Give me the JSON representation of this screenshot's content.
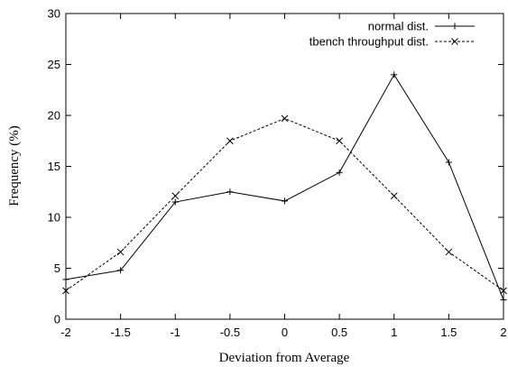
{
  "chart_data": {
    "type": "line",
    "xlabel": "Deviation from Average",
    "ylabel": "Frequency (%)",
    "xlim": [
      -2,
      2
    ],
    "ylim": [
      0,
      30
    ],
    "xticks": [
      "-2",
      "-1.5",
      "-1",
      "-0.5",
      "0",
      "0.5",
      "1",
      "1.5",
      "2"
    ],
    "yticks": [
      "0",
      "5",
      "10",
      "15",
      "20",
      "25",
      "30"
    ],
    "grid": false,
    "legend_position": "top-right",
    "x": [
      -2,
      -1.5,
      -1,
      -0.5,
      0,
      0.5,
      1,
      1.5,
      2
    ],
    "series": [
      {
        "name": "normal dist.",
        "values": [
          3.9,
          4.8,
          11.5,
          12.5,
          11.6,
          14.4,
          24.0,
          15.4,
          1.9
        ],
        "line_style": "solid",
        "marker": "plus",
        "color": "#000000"
      },
      {
        "name": "tbench throughput dist.",
        "values": [
          2.8,
          6.6,
          12.1,
          17.5,
          19.7,
          17.5,
          12.1,
          6.6,
          2.8
        ],
        "line_style": "dashed",
        "marker": "cross",
        "color": "#000000"
      }
    ]
  }
}
